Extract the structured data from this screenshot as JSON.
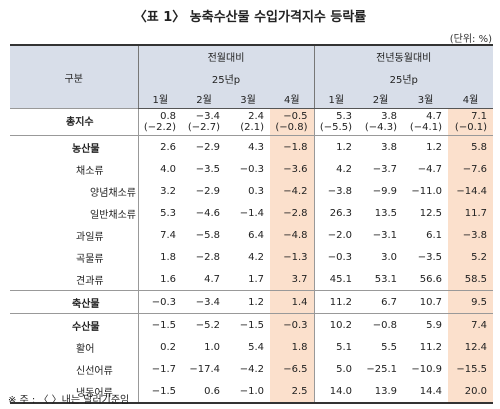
{
  "title": "〈표 1〉 농축수산물 수입가격지수 등락률",
  "unit": "(단위: %)",
  "header": {
    "gubun": "구분",
    "group1": "전월대비",
    "group2": "전년동월대비",
    "year1": "25년p",
    "year2": "25년p",
    "months1": [
      "1월",
      "2월",
      "3월",
      "4월"
    ],
    "months2": [
      "1월",
      "2월",
      "3월",
      "4월"
    ]
  },
  "rows": [
    {
      "label": "총지수",
      "level": 0,
      "bold": true,
      "v": [
        "0.8\n(−2.2)",
        "−3.4\n(−2.7)",
        "2.4\n(2.1)",
        "−0.5\n(−0.8)",
        "5.3\n(−5.5)",
        "3.8\n(−4.3)",
        "4.7\n(−4.1)",
        "7.1\n(−0.1)"
      ]
    },
    {
      "label": "농산물",
      "level": 1,
      "bold": true,
      "v": [
        "2.6",
        "−2.9",
        "4.3",
        "−1.8",
        "1.2",
        "3.8",
        "1.2",
        "5.8"
      ]
    },
    {
      "label": "채소류",
      "level": 2,
      "bold": false,
      "v": [
        "4.0",
        "−3.5",
        "−0.3",
        "−3.6",
        "4.2",
        "−3.7",
        "−4.7",
        "−7.6"
      ]
    },
    {
      "label": "양념채소류",
      "level": 3,
      "bold": false,
      "v": [
        "3.2",
        "−2.9",
        "0.3",
        "−4.2",
        "−3.8",
        "−9.9",
        "−11.0",
        "−14.4"
      ]
    },
    {
      "label": "일반채소류",
      "level": 3,
      "bold": false,
      "v": [
        "5.3",
        "−4.6",
        "−1.4",
        "−2.8",
        "26.3",
        "13.5",
        "12.5",
        "11.7"
      ]
    },
    {
      "label": "과일류",
      "level": 2,
      "bold": false,
      "v": [
        "7.4",
        "−5.8",
        "6.4",
        "−4.8",
        "−2.0",
        "−3.1",
        "6.1",
        "−3.8"
      ]
    },
    {
      "label": "곡물류",
      "level": 2,
      "bold": false,
      "v": [
        "1.8",
        "−2.8",
        "4.2",
        "−1.3",
        "−0.3",
        "3.0",
        "−3.5",
        "5.2"
      ]
    },
    {
      "label": "견과류",
      "level": 2,
      "bold": false,
      "v": [
        "1.6",
        "4.7",
        "1.7",
        "3.7",
        "45.1",
        "53.1",
        "56.6",
        "58.5"
      ]
    },
    {
      "label": "축산물",
      "level": 1,
      "bold": true,
      "v": [
        "−0.3",
        "−3.4",
        "1.2",
        "1.4",
        "11.2",
        "6.7",
        "10.7",
        "9.5"
      ]
    },
    {
      "label": "수산물",
      "level": 1,
      "bold": true,
      "v": [
        "−1.5",
        "−5.2",
        "−1.5",
        "−0.3",
        "10.2",
        "−0.8",
        "5.9",
        "7.4"
      ]
    },
    {
      "label": "활어",
      "level": 2,
      "bold": false,
      "v": [
        "0.2",
        "1.0",
        "5.4",
        "1.8",
        "5.1",
        "5.5",
        "11.2",
        "12.4"
      ]
    },
    {
      "label": "신선어류",
      "level": 2,
      "bold": false,
      "v": [
        "−1.7",
        "−17.4",
        "−4.2",
        "−6.5",
        "5.0",
        "−25.1",
        "−10.9",
        "−15.5"
      ]
    },
    {
      "label": "냉동어류",
      "level": 2,
      "bold": false,
      "v": [
        "−1.5",
        "0.6",
        "−1.0",
        "2.5",
        "14.0",
        "13.9",
        "14.4",
        "20.0"
      ]
    }
  ],
  "note": "※ 주 : 〈 〉내는 달러기준임",
  "colors": {
    "highlight": "#fbe0cc",
    "header_bg": "#d8dee9"
  }
}
